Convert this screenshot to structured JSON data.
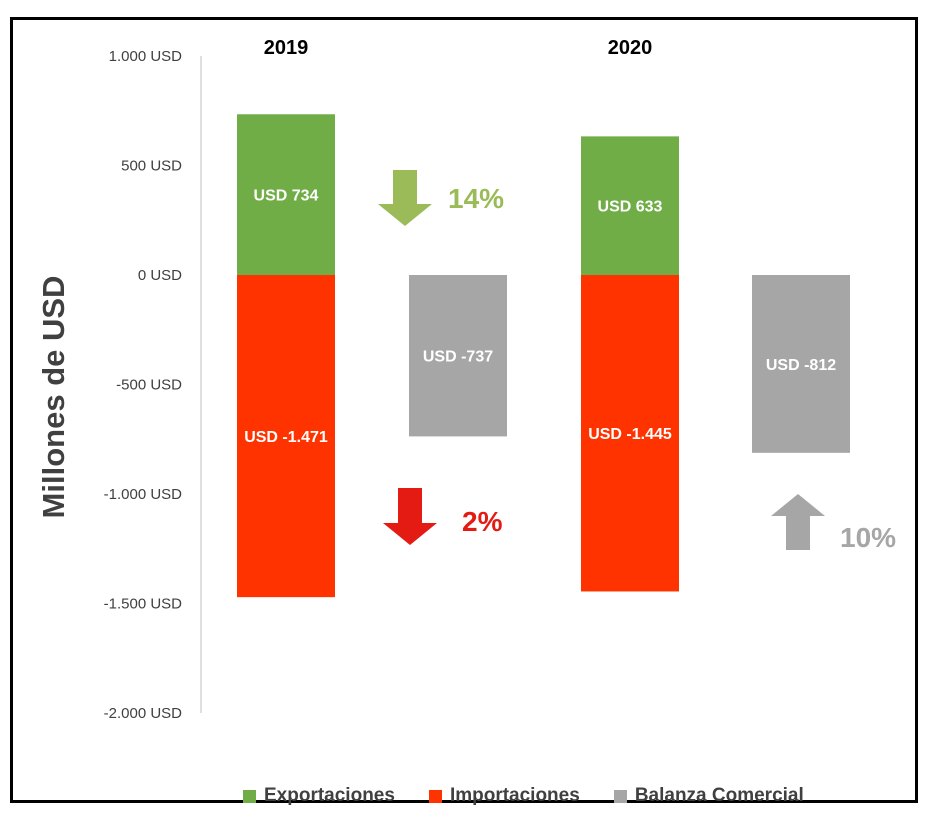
{
  "chart_data": {
    "type": "bar",
    "categories": [
      "2019",
      "2020"
    ],
    "ylabel": "Millones de USD",
    "ylim": [
      -2000,
      1000
    ],
    "yticks": [
      1000,
      500,
      0,
      -500,
      -1000,
      -1500,
      -2000
    ],
    "ytick_labels": [
      "1.000 USD",
      "500 USD",
      "0 USD",
      "-500 USD",
      "-1.000 USD",
      "-1.500 USD",
      "-2.000 USD"
    ],
    "series": [
      {
        "name": "Exportaciones",
        "color": "#70AD47",
        "values": [
          734,
          633
        ],
        "labels": [
          "USD 734",
          "USD 633"
        ]
      },
      {
        "name": "Importaciones",
        "color": "#FF3300",
        "values": [
          -1471,
          -1445
        ],
        "labels": [
          "USD -1.471",
          "USD -1.445"
        ]
      },
      {
        "name": "Balanza Comercial",
        "color": "#A6A6A6",
        "values": [
          -737,
          -812
        ],
        "labels": [
          "USD -737",
          "USD -812"
        ]
      }
    ],
    "annotations": [
      {
        "text": "14%",
        "direction": "down",
        "color": "#9BBB59",
        "series": "Exportaciones"
      },
      {
        "text": "2%",
        "direction": "down",
        "color": "#E41B13",
        "series": "Importaciones"
      },
      {
        "text": "10%",
        "direction": "up",
        "color": "#A6A6A6",
        "series": "Balanza Comercial"
      }
    ],
    "legend_position": "bottom",
    "grid": false
  }
}
